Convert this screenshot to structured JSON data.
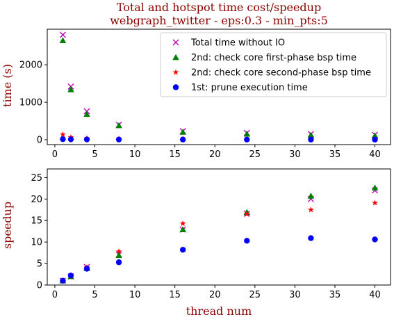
{
  "chart_data": [
    {
      "type": "scatter",
      "title_line1": "Total and hotspot time cost/speedup",
      "title_line2": "webgraph_twitter - eps:0.3 - min_pts:5",
      "xlabel": "",
      "ylabel": "time (s)",
      "xlim": [
        -0.95,
        41.95
      ],
      "ylim": [
        -130,
        2950
      ],
      "xticks": [
        0,
        5,
        10,
        15,
        20,
        25,
        30,
        35,
        40
      ],
      "yticks": [
        0,
        1000,
        2000
      ],
      "grid": false,
      "legend_position": "top-right",
      "x": [
        1,
        2,
        4,
        8,
        16,
        24,
        32,
        40
      ],
      "series": [
        {
          "name": "Total time without IO",
          "marker": "x",
          "color": "#bf00bf",
          "values": [
            2800,
            1420,
            760,
            400,
            230,
            180,
            150,
            130
          ]
        },
        {
          "name": "2nd: check core first-phase bsp time",
          "marker": "triangle",
          "color": "#008000",
          "values": [
            2650,
            1340,
            680,
            380,
            205,
            155,
            125,
            110
          ]
        },
        {
          "name": "2nd: check core second-phase bsp time",
          "marker": "star",
          "color": "#ff0000",
          "values": [
            140,
            65,
            35,
            22,
            12,
            9,
            8,
            8
          ]
        },
        {
          "name": "1st: prune execution time",
          "marker": "circle",
          "color": "#0000ff",
          "values": [
            15,
            10,
            8,
            6,
            5,
            4,
            4,
            4
          ]
        }
      ]
    },
    {
      "type": "scatter",
      "xlabel": "thread num",
      "ylabel": "speedup",
      "xlim": [
        -0.95,
        41.95
      ],
      "ylim": [
        0,
        27
      ],
      "xticks": [
        0,
        5,
        10,
        15,
        20,
        25,
        30,
        35,
        40
      ],
      "yticks": [
        0,
        5,
        10,
        15,
        20,
        25
      ],
      "grid": false,
      "x": [
        1,
        2,
        4,
        8,
        16,
        24,
        32,
        40
      ],
      "series": [
        {
          "name": "Total time without IO",
          "marker": "x",
          "color": "#bf00bf",
          "values": [
            1.0,
            2.0,
            4.2,
            7.1,
            12.9,
            16.6,
            20.0,
            22.0
          ]
        },
        {
          "name": "2nd: check core first-phase bsp time",
          "marker": "triangle",
          "color": "#008000",
          "values": [
            1.0,
            2.0,
            3.9,
            6.9,
            12.9,
            16.9,
            20.7,
            22.6
          ]
        },
        {
          "name": "2nd: check core second-phase bsp time",
          "marker": "star",
          "color": "#ff0000",
          "values": [
            1.0,
            2.1,
            4.1,
            7.8,
            14.3,
            16.5,
            17.5,
            19.1
          ]
        },
        {
          "name": "1st: prune execution time",
          "marker": "circle",
          "color": "#0000ff",
          "values": [
            1.0,
            2.2,
            3.8,
            5.3,
            8.2,
            10.3,
            10.9,
            10.6
          ]
        }
      ]
    }
  ]
}
